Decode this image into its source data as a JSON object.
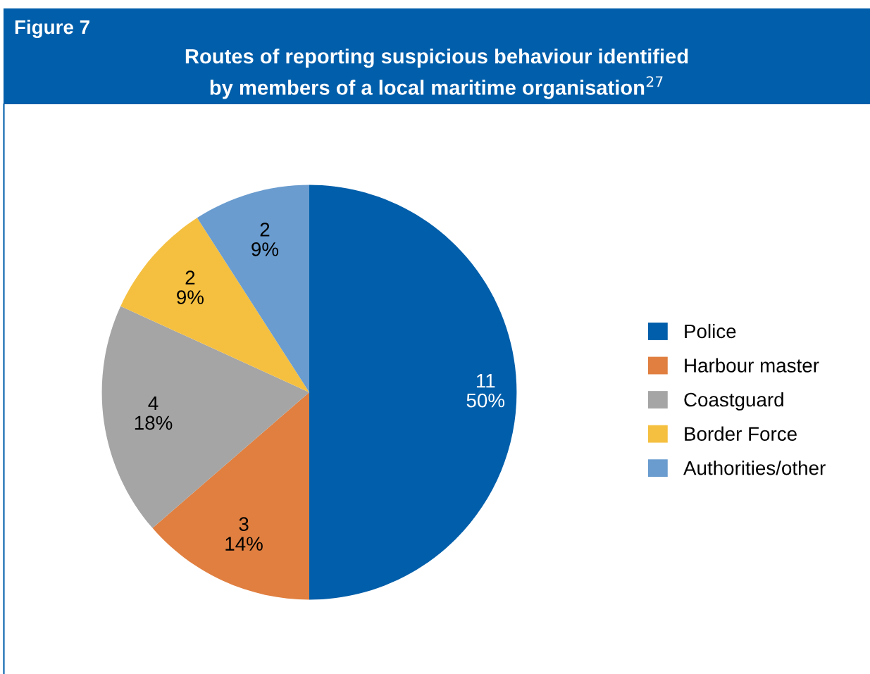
{
  "chart_data": {
    "type": "pie",
    "title": "Routes of reporting suspicious behaviour identified\nby members of a local maritime organisation$^{27}$",
    "annotations": [
      "Figure 7"
    ],
    "categories": [
      "Police",
      "Harbour master",
      "Coastguard",
      "Border Force",
      "Authorities/other"
    ],
    "values": [
      11,
      3,
      4,
      2,
      2
    ],
    "value_labels": [
      "11\n50%",
      "3\n14%",
      "4\n18%",
      "2\n9%",
      "2\n9%"
    ],
    "colors": [
      "#005eaa",
      "#e07f40",
      "#a5a5a5",
      "#f5c040",
      "#6a9ccf"
    ],
    "legend": "right"
  }
}
